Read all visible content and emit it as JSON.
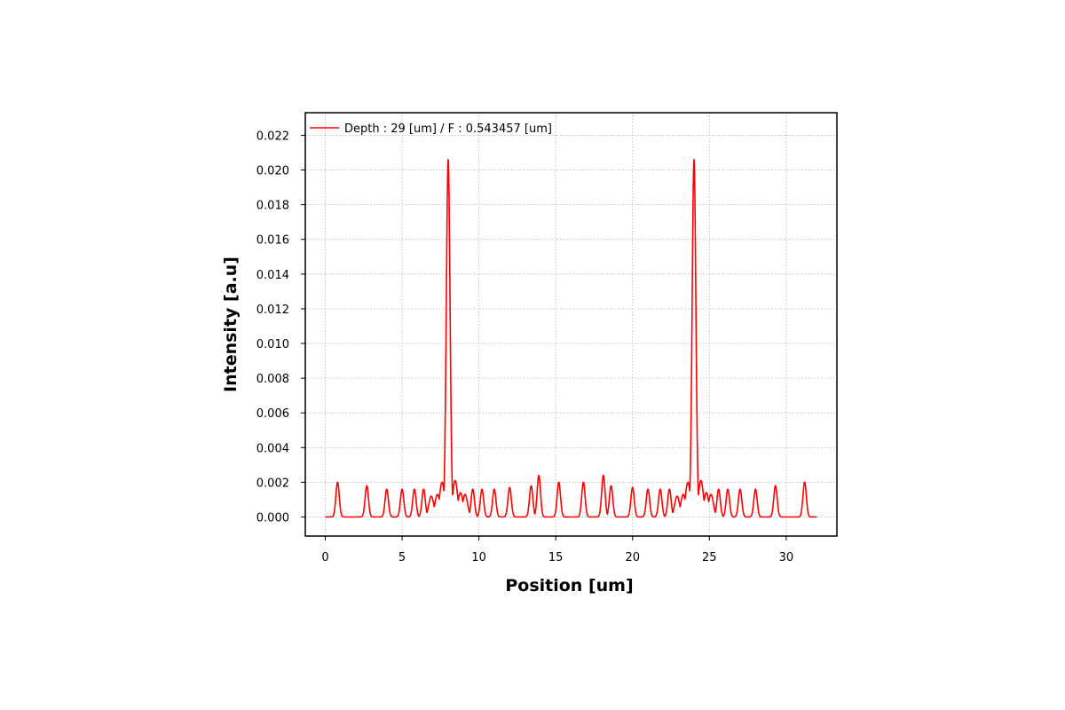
{
  "chart_data": {
    "type": "line",
    "xlabel": "Position [um]",
    "ylabel": "Intensity [a.u]",
    "xlim": [
      -1.3,
      33.3
    ],
    "ylim": [
      -0.0011,
      0.0233
    ],
    "x_ticks": [
      0,
      5,
      10,
      15,
      20,
      25,
      30
    ],
    "y_ticks": [
      0.0,
      0.002,
      0.004,
      0.006,
      0.008,
      0.01,
      0.012,
      0.014,
      0.016,
      0.018,
      0.02,
      0.022
    ],
    "y_tick_labels": [
      "0.000",
      "0.002",
      "0.004",
      "0.006",
      "0.008",
      "0.010",
      "0.012",
      "0.014",
      "0.016",
      "0.018",
      "0.020",
      "0.022"
    ],
    "grid": true,
    "legend": {
      "placement": "top-left"
    },
    "series": [
      {
        "name": "Depth : 29 [um] / F : 0.543457 [um]",
        "color": "#ff0000",
        "baseline": 0.0,
        "x_range": [
          0,
          32
        ],
        "main_peaks": [
          {
            "x": 8.0,
            "y": 0.0206,
            "width": 0.12
          },
          {
            "x": 24.0,
            "y": 0.0206,
            "width": 0.12
          }
        ],
        "side_lobes": [
          {
            "x": 0.8,
            "y": 0.002
          },
          {
            "x": 2.7,
            "y": 0.0018
          },
          {
            "x": 4.0,
            "y": 0.0016
          },
          {
            "x": 5.0,
            "y": 0.0016
          },
          {
            "x": 5.8,
            "y": 0.0016
          },
          {
            "x": 6.4,
            "y": 0.0016
          },
          {
            "x": 9.6,
            "y": 0.0016
          },
          {
            "x": 10.2,
            "y": 0.0016
          },
          {
            "x": 11.0,
            "y": 0.0016
          },
          {
            "x": 12.0,
            "y": 0.0017
          },
          {
            "x": 13.4,
            "y": 0.0018
          },
          {
            "x": 13.9,
            "y": 0.0024
          },
          {
            "x": 15.2,
            "y": 0.002
          },
          {
            "x": 16.8,
            "y": 0.002
          },
          {
            "x": 18.1,
            "y": 0.0024
          },
          {
            "x": 18.6,
            "y": 0.0018
          },
          {
            "x": 20.0,
            "y": 0.0017
          },
          {
            "x": 21.0,
            "y": 0.0016
          },
          {
            "x": 21.8,
            "y": 0.0016
          },
          {
            "x": 22.4,
            "y": 0.0016
          },
          {
            "x": 25.6,
            "y": 0.0016
          },
          {
            "x": 26.2,
            "y": 0.0016
          },
          {
            "x": 27.0,
            "y": 0.0016
          },
          {
            "x": 28.0,
            "y": 0.0016
          },
          {
            "x": 29.3,
            "y": 0.0018
          },
          {
            "x": 31.2,
            "y": 0.002
          }
        ],
        "shoulders": [
          {
            "x": 6.9,
            "y": 0.0012
          },
          {
            "x": 7.3,
            "y": 0.0013
          },
          {
            "x": 7.6,
            "y": 0.002
          },
          {
            "x": 8.45,
            "y": 0.0021
          },
          {
            "x": 8.8,
            "y": 0.0014
          },
          {
            "x": 9.1,
            "y": 0.0013
          },
          {
            "x": 22.9,
            "y": 0.0012
          },
          {
            "x": 23.3,
            "y": 0.0013
          },
          {
            "x": 23.6,
            "y": 0.002
          },
          {
            "x": 24.45,
            "y": 0.0021
          },
          {
            "x": 24.8,
            "y": 0.0014
          },
          {
            "x": 25.1,
            "y": 0.0013
          }
        ]
      }
    ]
  }
}
